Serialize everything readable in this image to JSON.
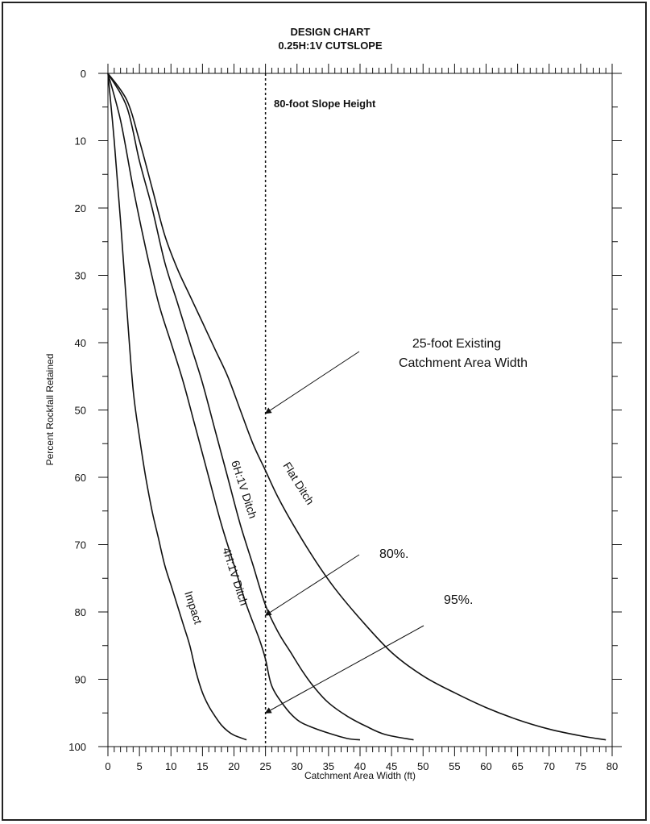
{
  "chart_data": {
    "type": "line",
    "title": "DESIGN CHART",
    "subtitle": "0.25H:1V CUTSLOPE",
    "xlabel": "Catchment Area Width (ft)",
    "ylabel": "Percent Rockfall Retained",
    "xlim": [
      0,
      80
    ],
    "ylim": [
      0,
      100
    ],
    "y_inverted": true,
    "x_ticks": [
      0,
      5,
      10,
      15,
      20,
      25,
      30,
      35,
      40,
      45,
      50,
      55,
      60,
      65,
      70,
      75,
      80
    ],
    "y_ticks": [
      0,
      10,
      20,
      30,
      40,
      50,
      60,
      70,
      80,
      90,
      100
    ],
    "grid": false,
    "series": [
      {
        "name": "Impact",
        "x": [
          0,
          1,
          2,
          3,
          4,
          5,
          6,
          7,
          8,
          9,
          10,
          11,
          12,
          13,
          14,
          15,
          16,
          17,
          18,
          19,
          20,
          22
        ],
        "y": [
          0,
          10,
          22,
          35,
          47,
          54,
          60,
          65,
          69,
          73,
          76,
          79,
          82,
          85,
          89,
          92,
          94,
          95.5,
          96.8,
          97.7,
          98.3,
          99
        ]
      },
      {
        "name": "4H:1V Ditch",
        "x": [
          0,
          2,
          4,
          6,
          8,
          10,
          12,
          14,
          16,
          18,
          20,
          22,
          24,
          25,
          26,
          28,
          30,
          32,
          35,
          38,
          40
        ],
        "y": [
          0,
          7,
          17,
          26,
          34,
          40,
          46,
          53,
          60,
          67,
          73,
          79,
          84,
          87,
          91,
          94,
          96,
          97,
          98,
          98.8,
          99
        ]
      },
      {
        "name": "6H:1V Ditch",
        "x": [
          0,
          3,
          5,
          7,
          9,
          11,
          13,
          15,
          17,
          19,
          21,
          23,
          25,
          27,
          29,
          31,
          33,
          35,
          38,
          41,
          44,
          48.5
        ],
        "y": [
          0,
          5,
          13,
          20,
          28,
          34,
          40,
          46,
          53,
          60,
          67,
          73,
          79,
          83,
          86,
          89,
          91.5,
          93.5,
          95.5,
          97,
          98.2,
          99
        ]
      },
      {
        "name": "Flat Ditch",
        "x": [
          0,
          3,
          5,
          7,
          9,
          11,
          13,
          15,
          17,
          19,
          21,
          23,
          25,
          27,
          30,
          33,
          36,
          40,
          45,
          50,
          55,
          60,
          65,
          70,
          75,
          79
        ],
        "y": [
          0,
          4,
          10,
          17,
          24,
          29,
          33,
          37,
          41,
          45,
          50,
          55,
          59,
          63,
          68,
          72.5,
          76.5,
          81,
          86,
          89.5,
          92,
          94.2,
          96,
          97.4,
          98.4,
          99
        ]
      }
    ],
    "vertical_line": {
      "x": 25,
      "label": "80-foot Slope Height",
      "style": "dotted"
    },
    "annotations": [
      {
        "id": "existing",
        "lines": [
          "25-foot Existing",
          "Catchment Area Width"
        ],
        "point": [
          25,
          50.5
        ]
      },
      {
        "id": "p80",
        "lines": [
          "80%."
        ],
        "point": [
          25,
          80.5
        ]
      },
      {
        "id": "p95",
        "lines": [
          "95%."
        ],
        "point": [
          25,
          95
        ]
      }
    ]
  },
  "colors": {
    "line": "#111111",
    "frame": "#222222",
    "background": "#ffffff"
  }
}
